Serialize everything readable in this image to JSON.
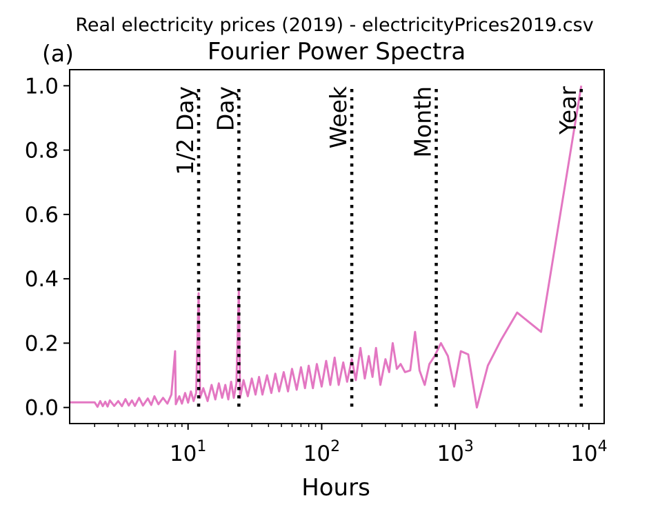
{
  "suptitle": "Real electricity prices (2019) - electricityPrices2019.csv",
  "chart_data": {
    "type": "line",
    "panel_label": "(a)",
    "title": "Fourier Power Spectra",
    "xlabel": "Hours",
    "ylabel": "",
    "x_scale": "log",
    "xlim": [
      1.3,
      13000
    ],
    "ylim": [
      -0.05,
      1.05
    ],
    "x_ticks": [
      {
        "value": 10,
        "base": "10",
        "exp": "1"
      },
      {
        "value": 100,
        "base": "10",
        "exp": "2"
      },
      {
        "value": 1000,
        "base": "10",
        "exp": "3"
      },
      {
        "value": 10000,
        "base": "10",
        "exp": "4"
      }
    ],
    "y_ticks": [
      {
        "value": 0.0,
        "label": "0.0"
      },
      {
        "value": 0.2,
        "label": "0.2"
      },
      {
        "value": 0.4,
        "label": "0.4"
      },
      {
        "value": 0.6,
        "label": "0.6"
      },
      {
        "value": 0.8,
        "label": "0.8"
      },
      {
        "value": 1.0,
        "label": "1.0"
      }
    ],
    "grid": false,
    "line_color": "#e377c2",
    "reference_lines": [
      {
        "x": 12,
        "label": "1/2 Day"
      },
      {
        "x": 24,
        "label": "Day"
      },
      {
        "x": 168,
        "label": "Week"
      },
      {
        "x": 720,
        "label": "Month"
      },
      {
        "x": 8760,
        "label": "Year"
      }
    ],
    "series_points": [
      [
        1.0,
        0.016
      ],
      [
        2.0,
        0.016
      ],
      [
        2.1,
        0.002
      ],
      [
        2.2,
        0.02
      ],
      [
        2.3,
        0.004
      ],
      [
        2.4,
        0.018
      ],
      [
        2.5,
        0.003
      ],
      [
        2.6,
        0.022
      ],
      [
        2.8,
        0.005
      ],
      [
        3.0,
        0.02
      ],
      [
        3.2,
        0.004
      ],
      [
        3.4,
        0.026
      ],
      [
        3.6,
        0.006
      ],
      [
        3.8,
        0.022
      ],
      [
        4.0,
        0.005
      ],
      [
        4.3,
        0.03
      ],
      [
        4.6,
        0.006
      ],
      [
        5.0,
        0.028
      ],
      [
        5.3,
        0.008
      ],
      [
        5.6,
        0.035
      ],
      [
        6.0,
        0.01
      ],
      [
        6.5,
        0.03
      ],
      [
        7.0,
        0.012
      ],
      [
        7.5,
        0.04
      ],
      [
        8.0,
        0.175
      ],
      [
        8.1,
        0.01
      ],
      [
        8.6,
        0.035
      ],
      [
        9.0,
        0.012
      ],
      [
        9.5,
        0.045
      ],
      [
        10.0,
        0.015
      ],
      [
        10.5,
        0.05
      ],
      [
        11.0,
        0.02
      ],
      [
        11.5,
        0.045
      ],
      [
        12.0,
        0.355
      ],
      [
        12.3,
        0.03
      ],
      [
        13.0,
        0.06
      ],
      [
        14.0,
        0.02
      ],
      [
        15.0,
        0.07
      ],
      [
        16.0,
        0.025
      ],
      [
        17.0,
        0.075
      ],
      [
        18.0,
        0.03
      ],
      [
        19.0,
        0.07
      ],
      [
        20.0,
        0.025
      ],
      [
        21.0,
        0.08
      ],
      [
        22.0,
        0.03
      ],
      [
        23.0,
        0.075
      ],
      [
        24.0,
        0.365
      ],
      [
        24.5,
        0.03
      ],
      [
        26.0,
        0.085
      ],
      [
        28.0,
        0.035
      ],
      [
        30.0,
        0.09
      ],
      [
        32.0,
        0.04
      ],
      [
        34.0,
        0.095
      ],
      [
        36.0,
        0.04
      ],
      [
        39.0,
        0.1
      ],
      [
        42.0,
        0.045
      ],
      [
        45.0,
        0.105
      ],
      [
        48.0,
        0.05
      ],
      [
        52.0,
        0.11
      ],
      [
        56.0,
        0.05
      ],
      [
        60.0,
        0.12
      ],
      [
        65.0,
        0.055
      ],
      [
        70.0,
        0.125
      ],
      [
        75.0,
        0.06
      ],
      [
        80.0,
        0.13
      ],
      [
        86.0,
        0.06
      ],
      [
        92.0,
        0.135
      ],
      [
        100.0,
        0.065
      ],
      [
        108.0,
        0.145
      ],
      [
        116.0,
        0.07
      ],
      [
        125.0,
        0.155
      ],
      [
        134.0,
        0.07
      ],
      [
        145.0,
        0.14
      ],
      [
        155.0,
        0.08
      ],
      [
        168.0,
        0.15
      ],
      [
        180.0,
        0.085
      ],
      [
        195.0,
        0.185
      ],
      [
        210.0,
        0.09
      ],
      [
        225.0,
        0.16
      ],
      [
        240.0,
        0.095
      ],
      [
        255.0,
        0.185
      ],
      [
        275.0,
        0.07
      ],
      [
        300.0,
        0.15
      ],
      [
        320.0,
        0.11
      ],
      [
        340.0,
        0.2
      ],
      [
        365.0,
        0.12
      ],
      [
        390.0,
        0.135
      ],
      [
        420.0,
        0.11
      ],
      [
        460.0,
        0.115
      ],
      [
        500.0,
        0.235
      ],
      [
        540.0,
        0.115
      ],
      [
        590.0,
        0.07
      ],
      [
        640.0,
        0.135
      ],
      [
        700.0,
        0.16
      ],
      [
        780.0,
        0.2
      ],
      [
        880.0,
        0.16
      ],
      [
        980.0,
        0.065
      ],
      [
        1100.0,
        0.175
      ],
      [
        1250.0,
        0.165
      ],
      [
        1450.0,
        0.0
      ],
      [
        1750.0,
        0.13
      ],
      [
        2200.0,
        0.21
      ],
      [
        2900.0,
        0.295
      ],
      [
        4380.0,
        0.235
      ],
      [
        8760.0,
        1.0
      ]
    ]
  }
}
